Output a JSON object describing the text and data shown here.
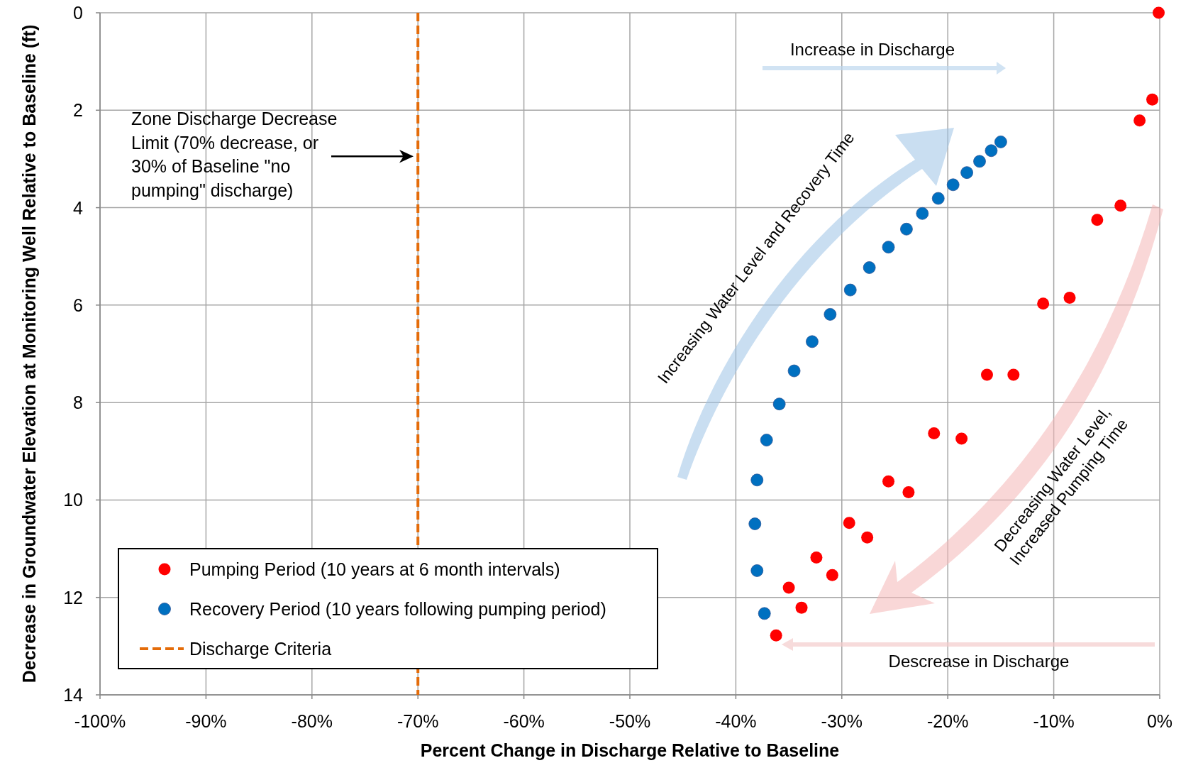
{
  "chart_data": {
    "type": "scatter",
    "xlabel": "Percent Change in Discharge Relative to Baseline",
    "ylabel": "Decrease in Groundwater Elevation at Monitoring Well Relative to Baseline (ft)",
    "xlim": [
      -100,
      0
    ],
    "xticks": [
      {
        "value": -100,
        "label": "-100%"
      },
      {
        "value": -90,
        "label": "-90%"
      },
      {
        "value": -80,
        "label": "-80%"
      },
      {
        "value": -70,
        "label": "-70%"
      },
      {
        "value": -60,
        "label": "-60%"
      },
      {
        "value": -50,
        "label": "-50%"
      },
      {
        "value": -40,
        "label": "-40%"
      },
      {
        "value": -30,
        "label": "-30%"
      },
      {
        "value": -20,
        "label": "-20%"
      },
      {
        "value": -10,
        "label": "-10%"
      },
      {
        "value": 0,
        "label": "0%"
      }
    ],
    "ylim": [
      14,
      0
    ],
    "yticks": [
      0,
      2,
      4,
      6,
      8,
      10,
      12,
      14
    ],
    "grid": true,
    "legend": "bottom left",
    "series": [
      {
        "name": "Pumping Period (10 years at 6 month intervals)",
        "color": "#ff0000",
        "marker": "circle",
        "x": [
          -0.1,
          -0.7,
          -1.9,
          -3.7,
          -5.9,
          -8.5,
          -11.0,
          -13.8,
          -16.3,
          -18.7,
          -21.3,
          -23.7,
          -25.6,
          -27.6,
          -29.3,
          -30.9,
          -32.4,
          -33.8,
          -35.0,
          -36.2
        ],
        "values": [
          0,
          1.78,
          2.21,
          3.96,
          4.25,
          5.85,
          5.97,
          7.43,
          7.43,
          8.74,
          8.63,
          9.84,
          9.62,
          10.77,
          10.47,
          11.54,
          11.18,
          12.21,
          11.8,
          12.78
        ]
      },
      {
        "name": "Recovery Period (10 years following pumping period)",
        "color": "#0070c0",
        "marker": "circle",
        "x": [
          -15.0,
          -15.9,
          -17.0,
          -18.2,
          -19.5,
          -20.9,
          -22.4,
          -23.9,
          -25.6,
          -27.4,
          -29.2,
          -31.1,
          -32.8,
          -34.5,
          -35.9,
          -37.1,
          -38.0,
          -38.2,
          -38.0,
          -37.3
        ],
        "values": [
          2.65,
          2.83,
          3.05,
          3.28,
          3.53,
          3.81,
          4.12,
          4.44,
          4.81,
          5.23,
          5.69,
          6.19,
          6.75,
          7.35,
          8.03,
          8.77,
          9.59,
          10.49,
          11.45,
          12.33
        ]
      },
      {
        "name": "Discharge Criteria",
        "type": "line",
        "color": "#e46c0a",
        "marker": "none",
        "x": [
          -70,
          -70
        ],
        "values": [
          0,
          14
        ]
      }
    ],
    "line_style": "dashed",
    "annotations": [
      "Zone Discharge Decrease Limit (70% decrease, or 30% of Baseline \"no pumping\" discharge)",
      "Increase in Discharge",
      "Increasing Water Level and Recovery Time",
      "Decreasing Water Level, Increased Pumping Time",
      "Descrease in Discharge"
    ]
  }
}
